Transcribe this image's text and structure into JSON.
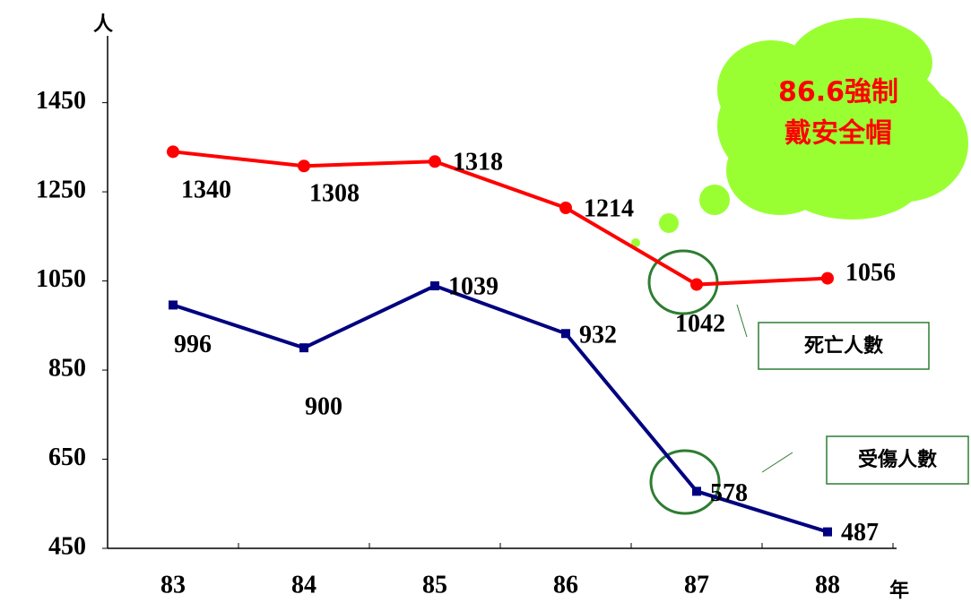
{
  "chart_data": {
    "type": "line",
    "y_label": "人",
    "x_label": "年",
    "categories": [
      "83",
      "84",
      "85",
      "86",
      "87",
      "88"
    ],
    "series": [
      {
        "name": "死亡人數",
        "color": "#ff0000",
        "values": [
          1340,
          1308,
          1318,
          1214,
          1042,
          1056
        ]
      },
      {
        "name": "受傷人數",
        "color": "#000080",
        "values": [
          996,
          900,
          1039,
          932,
          578,
          487
        ]
      }
    ],
    "ylim": [
      450,
      1600
    ],
    "yticks": [
      450,
      650,
      850,
      1050,
      1250,
      1450
    ],
    "annotation": [
      "86.6強制",
      "戴安全帽"
    ]
  }
}
